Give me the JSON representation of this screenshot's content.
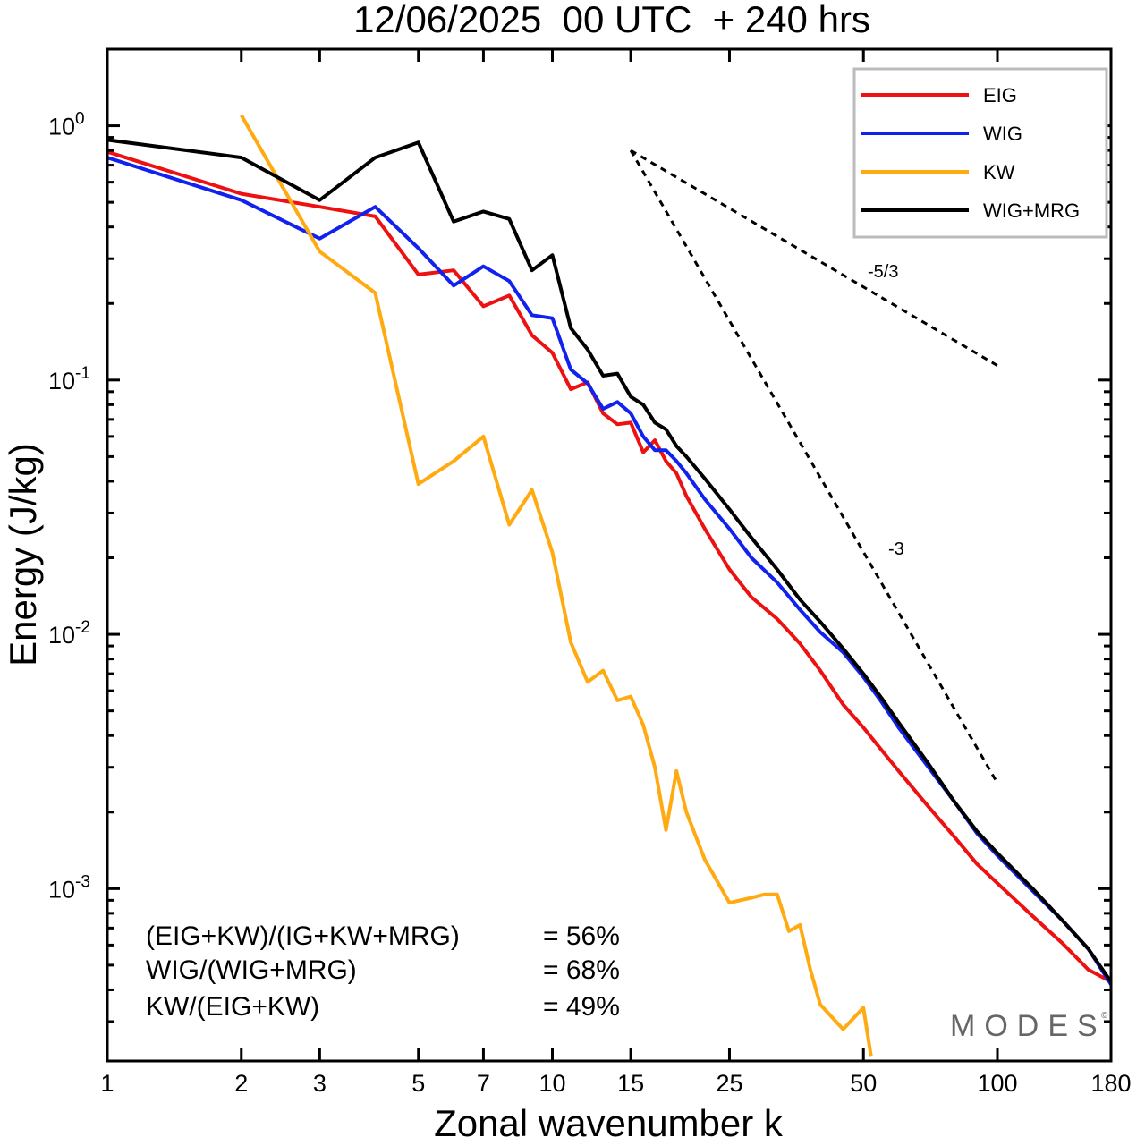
{
  "chart_data": {
    "type": "line",
    "title": "12/06/2025  00 UTC  + 240 hrs",
    "xlabel": "Zonal wavenumber k",
    "ylabel": "Energy (J/kg)",
    "xscale": "log",
    "yscale": "log",
    "xlim": [
      1,
      180
    ],
    "ylim": [
      0.00021,
      2.0
    ],
    "xticks": [
      1,
      2,
      3,
      5,
      7,
      10,
      15,
      25,
      50,
      100,
      180
    ],
    "yticks": [
      {
        "value": 1,
        "base": "10",
        "exp": "0"
      },
      {
        "value": 0.1,
        "base": "10",
        "exp": "-1"
      },
      {
        "value": 0.01,
        "base": "10",
        "exp": "-2"
      },
      {
        "value": 0.001,
        "base": "10",
        "exp": "-3"
      }
    ],
    "grid": false,
    "legend_position": "top-right",
    "series": [
      {
        "name": "EIG",
        "color": "#ee1111",
        "x": [
          1,
          2,
          3,
          4,
          5,
          6,
          7,
          8,
          9,
          10,
          11,
          12,
          13,
          14,
          15,
          16,
          17,
          18,
          19,
          20,
          22,
          25,
          28,
          32,
          36,
          40,
          45,
          50,
          55,
          60,
          70,
          80,
          90,
          100,
          120,
          140,
          160,
          180
        ],
        "y": [
          0.79,
          0.54,
          0.48,
          0.44,
          0.26,
          0.27,
          0.195,
          0.215,
          0.15,
          0.128,
          0.092,
          0.098,
          0.074,
          0.067,
          0.068,
          0.052,
          0.058,
          0.048,
          0.043,
          0.035,
          0.026,
          0.018,
          0.014,
          0.0115,
          0.0092,
          0.0072,
          0.0053,
          0.0043,
          0.0035,
          0.0029,
          0.0021,
          0.0016,
          0.00125,
          0.00105,
          0.00078,
          0.00061,
          0.00048,
          0.00043
        ]
      },
      {
        "name": "WIG",
        "color": "#1122ee",
        "x": [
          1,
          2,
          3,
          4,
          5,
          6,
          7,
          8,
          9,
          10,
          11,
          12,
          13,
          14,
          15,
          16,
          17,
          18,
          19,
          20,
          22,
          25,
          28,
          32,
          36,
          40,
          45,
          50,
          55,
          60,
          70,
          80,
          90,
          100,
          120,
          140,
          160,
          180
        ],
        "y": [
          0.75,
          0.51,
          0.36,
          0.48,
          0.33,
          0.235,
          0.28,
          0.245,
          0.18,
          0.175,
          0.11,
          0.097,
          0.077,
          0.082,
          0.074,
          0.06,
          0.053,
          0.053,
          0.048,
          0.043,
          0.034,
          0.026,
          0.02,
          0.016,
          0.0125,
          0.0102,
          0.0085,
          0.0068,
          0.0054,
          0.0043,
          0.003,
          0.0022,
          0.00165,
          0.00135,
          0.00098,
          0.00075,
          0.00058,
          0.00042
        ]
      },
      {
        "name": "KW",
        "color": "#ffaa11",
        "x": [
          2,
          3,
          4,
          5,
          6,
          7,
          8,
          9,
          10,
          11,
          12,
          13,
          14,
          15,
          16,
          17,
          18,
          19,
          20,
          22,
          25,
          28,
          30,
          32,
          34,
          36,
          38,
          40,
          45,
          50,
          52
        ],
        "y": [
          1.1,
          0.32,
          0.22,
          0.039,
          0.048,
          0.06,
          0.027,
          0.037,
          0.021,
          0.0093,
          0.0065,
          0.0072,
          0.0055,
          0.0057,
          0.0044,
          0.003,
          0.0017,
          0.0029,
          0.002,
          0.0013,
          0.00088,
          0.00092,
          0.00095,
          0.00095,
          0.00068,
          0.00072,
          0.00048,
          0.00035,
          0.00028,
          0.00034,
          0.00022
        ]
      },
      {
        "name": "WIG+MRG",
        "color": "#000000",
        "x": [
          1,
          2,
          3,
          4,
          5,
          6,
          7,
          8,
          9,
          10,
          11,
          12,
          13,
          14,
          15,
          16,
          17,
          18,
          19,
          20,
          22,
          25,
          28,
          32,
          36,
          40,
          45,
          50,
          55,
          60,
          70,
          80,
          90,
          100,
          120,
          140,
          160,
          180
        ],
        "y": [
          0.88,
          0.75,
          0.51,
          0.75,
          0.86,
          0.42,
          0.46,
          0.43,
          0.27,
          0.31,
          0.16,
          0.132,
          0.104,
          0.106,
          0.086,
          0.08,
          0.068,
          0.064,
          0.055,
          0.05,
          0.041,
          0.031,
          0.024,
          0.018,
          0.0137,
          0.0112,
          0.0088,
          0.007,
          0.0056,
          0.0045,
          0.0031,
          0.0022,
          0.00168,
          0.00138,
          0.001,
          0.00075,
          0.00058,
          0.00043
        ]
      }
    ],
    "reference_slopes": [
      {
        "label": "-5/3",
        "x": [
          15,
          100
        ],
        "y": [
          0.8,
          0.114
        ]
      },
      {
        "label": "-3",
        "x": [
          15,
          100
        ],
        "y": [
          0.8,
          0.0026
        ]
      }
    ],
    "annotations": [
      {
        "text": "(EIG+KW)/(IG+KW+MRG)",
        "value": "= 56%"
      },
      {
        "text": "WIG/(WIG+MRG)",
        "value": "= 68%"
      },
      {
        "text": "KW/(EIG+KW)",
        "value": "= 49%"
      }
    ],
    "watermark": "MODES",
    "watermark_mark": "©"
  }
}
